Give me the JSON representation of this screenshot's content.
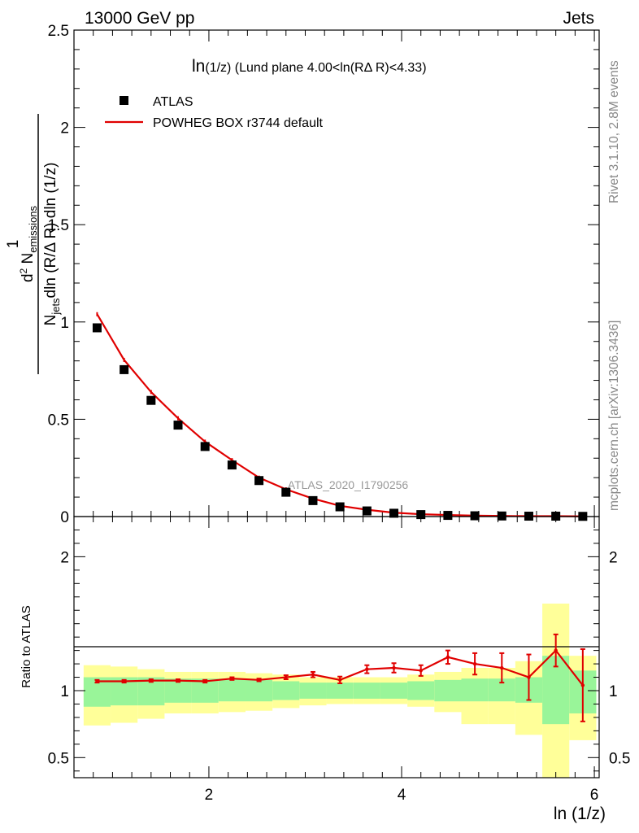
{
  "header": {
    "left": "13000 GeV pp",
    "right": "Jets"
  },
  "side_labels": {
    "rivet": "Rivet 3.1.10,  2.8M events",
    "mcplots": "mcplots.cern.ch [arXiv:1306.3436]"
  },
  "colors": {
    "mc": "#e00000",
    "data": "#000000",
    "band_inner": "#99f599",
    "band_outer": "#ffff99"
  },
  "chart_data": [
    {
      "type": "scatter",
      "panel": "main",
      "title_main": "ln",
      "title_sub": "(1/z)",
      "title_rest": " (Lund plane 4.00<ln(RΔ R)<4.33)",
      "ylabel": {
        "one": "1",
        "njets": "N",
        "njets_sub": "jets",
        "denom_rest": "dln (R/Δ R) dln (1/z)",
        "num_d": "d",
        "num_sup": "2",
        "num_n": " N",
        "num_sub": "emissions"
      },
      "xlim": [
        0.6,
        6.05
      ],
      "ylim": [
        0,
        2.5
      ],
      "yticks": [
        0,
        0.5,
        1,
        1.5,
        2,
        2.5
      ],
      "ytick_labels": [
        "0",
        "0.5",
        "1",
        "1.5",
        "2",
        "2.5"
      ],
      "watermark": "ATLAS_2020_I1790256",
      "legend": [
        {
          "name": "ATLAS",
          "marker": "square"
        },
        {
          "name": "POWHEG BOX r3744 default",
          "marker": "line"
        }
      ],
      "series": [
        {
          "name": "ATLAS",
          "x": [
            0.84,
            1.12,
            1.4,
            1.68,
            1.96,
            2.24,
            2.52,
            2.8,
            3.08,
            3.36,
            3.64,
            3.92,
            4.2,
            4.48,
            4.76,
            5.04,
            5.32,
            5.6,
            5.88
          ],
          "y": [
            0.97,
            0.755,
            0.597,
            0.47,
            0.36,
            0.265,
            0.185,
            0.125,
            0.082,
            0.05,
            0.029,
            0.017,
            0.01,
            0.006,
            0.004,
            0.003,
            0.002,
            0.002,
            0.001
          ]
        },
        {
          "name": "POWHEG BOX r3744 default",
          "x": [
            0.84,
            1.12,
            1.4,
            1.68,
            1.96,
            2.24,
            2.52,
            2.8,
            3.08,
            3.36,
            3.64,
            3.92,
            4.2,
            4.48,
            4.76,
            5.04,
            5.32,
            5.6,
            5.88
          ],
          "y": [
            1.04,
            0.805,
            0.64,
            0.505,
            0.385,
            0.29,
            0.2,
            0.14,
            0.092,
            0.055,
            0.035,
            0.02,
            0.012,
            0.008,
            0.005,
            0.003,
            0.002,
            0.002,
            0.001
          ]
        }
      ]
    },
    {
      "type": "line",
      "panel": "ratio",
      "ylabel": "Ratio to ATLAS",
      "xlabel": "ln (1/z)",
      "xlim": [
        0.6,
        6.05
      ],
      "ylim": [
        0.35,
        2.3
      ],
      "xticks": [
        2,
        4,
        6
      ],
      "xtick_labels": [
        "2",
        "4",
        "6"
      ],
      "yticks": [
        0.5,
        1,
        2
      ],
      "ytick_labels": [
        "0.5",
        "1",
        "2"
      ],
      "bins": [
        {
          "lo": 0.7,
          "hi": 0.98,
          "inner": [
            0.88,
            1.1
          ],
          "outer": [
            0.74,
            1.19
          ]
        },
        {
          "lo": 0.98,
          "hi": 1.26,
          "inner": [
            0.89,
            1.1
          ],
          "outer": [
            0.76,
            1.18
          ]
        },
        {
          "lo": 1.26,
          "hi": 1.54,
          "inner": [
            0.89,
            1.1
          ],
          "outer": [
            0.79,
            1.16
          ]
        },
        {
          "lo": 1.54,
          "hi": 1.82,
          "inner": [
            0.91,
            1.09
          ],
          "outer": [
            0.83,
            1.14
          ]
        },
        {
          "lo": 1.82,
          "hi": 2.1,
          "inner": [
            0.91,
            1.09
          ],
          "outer": [
            0.83,
            1.14
          ]
        },
        {
          "lo": 2.1,
          "hi": 2.38,
          "inner": [
            0.92,
            1.09
          ],
          "outer": [
            0.84,
            1.14
          ]
        },
        {
          "lo": 2.38,
          "hi": 2.66,
          "inner": [
            0.92,
            1.08
          ],
          "outer": [
            0.85,
            1.13
          ]
        },
        {
          "lo": 2.66,
          "hi": 2.94,
          "inner": [
            0.93,
            1.07
          ],
          "outer": [
            0.87,
            1.12
          ]
        },
        {
          "lo": 2.94,
          "hi": 3.22,
          "inner": [
            0.94,
            1.06
          ],
          "outer": [
            0.89,
            1.1
          ]
        },
        {
          "lo": 3.22,
          "hi": 3.5,
          "inner": [
            0.94,
            1.06
          ],
          "outer": [
            0.9,
            1.1
          ]
        },
        {
          "lo": 3.5,
          "hi": 3.78,
          "inner": [
            0.94,
            1.06
          ],
          "outer": [
            0.9,
            1.1
          ]
        },
        {
          "lo": 3.78,
          "hi": 4.06,
          "inner": [
            0.94,
            1.06
          ],
          "outer": [
            0.9,
            1.1
          ]
        },
        {
          "lo": 4.06,
          "hi": 4.34,
          "inner": [
            0.93,
            1.07
          ],
          "outer": [
            0.88,
            1.12
          ]
        },
        {
          "lo": 4.34,
          "hi": 4.62,
          "inner": [
            0.92,
            1.08
          ],
          "outer": [
            0.84,
            1.14
          ]
        },
        {
          "lo": 4.62,
          "hi": 4.9,
          "inner": [
            0.92,
            1.09
          ],
          "outer": [
            0.75,
            1.17
          ]
        },
        {
          "lo": 4.9,
          "hi": 5.18,
          "inner": [
            0.92,
            1.09
          ],
          "outer": [
            0.75,
            1.17
          ]
        },
        {
          "lo": 5.18,
          "hi": 5.46,
          "inner": [
            0.91,
            1.1
          ],
          "outer": [
            0.67,
            1.22
          ]
        },
        {
          "lo": 5.46,
          "hi": 5.74,
          "inner": [
            0.75,
            1.26
          ],
          "outer": [
            0.35,
            1.65
          ]
        },
        {
          "lo": 5.74,
          "hi": 6.02,
          "inner": [
            0.83,
            1.15
          ],
          "outer": [
            0.63,
            1.26
          ]
        }
      ],
      "series": [
        {
          "name": "POWHEG BOX r3744 default",
          "x": [
            0.84,
            1.12,
            1.4,
            1.68,
            1.96,
            2.24,
            2.52,
            2.8,
            3.08,
            3.36,
            3.64,
            3.92,
            4.2,
            4.48,
            4.76,
            5.04,
            5.32,
            5.6,
            5.88
          ],
          "y": [
            1.07,
            1.07,
            1.075,
            1.075,
            1.07,
            1.09,
            1.08,
            1.1,
            1.12,
            1.08,
            1.16,
            1.17,
            1.15,
            1.25,
            1.2,
            1.17,
            1.1,
            1.3,
            1.04
          ],
          "err": [
            0.01,
            0.01,
            0.01,
            0.01,
            0.01,
            0.01,
            0.01,
            0.015,
            0.02,
            0.025,
            0.03,
            0.035,
            0.04,
            0.05,
            0.08,
            0.11,
            0.17,
            0.12,
            0.27
          ]
        }
      ]
    }
  ]
}
